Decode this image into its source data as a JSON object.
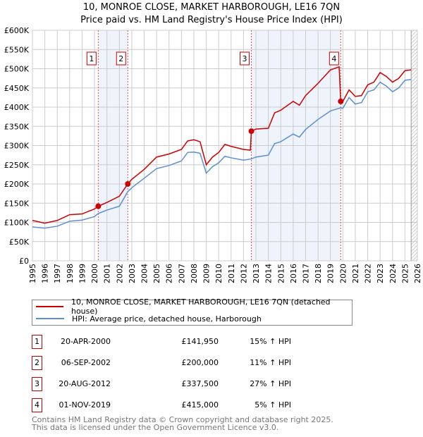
{
  "chart_data": {
    "type": "line",
    "title": "10, MONROE CLOSE, MARKET HARBOROUGH, LE16 7QN",
    "subtitle": "Price paid vs. HM Land Registry's House Price Index (HPI)",
    "xlim": [
      1995,
      2026
    ],
    "ylim": [
      0,
      600000
    ],
    "x_ticks": [
      "1995",
      "1996",
      "1997",
      "1998",
      "1999",
      "2000",
      "2001",
      "2002",
      "2003",
      "2004",
      "2005",
      "2006",
      "2007",
      "2008",
      "2009",
      "2010",
      "2011",
      "2012",
      "2013",
      "2014",
      "2015",
      "2016",
      "2017",
      "2018",
      "2019",
      "2020",
      "2021",
      "2022",
      "2023",
      "2024",
      "2025",
      "2026"
    ],
    "y_ticks": [
      "£0",
      "£50K",
      "£100K",
      "£150K",
      "£200K",
      "£250K",
      "£300K",
      "£350K",
      "£400K",
      "£450K",
      "£500K",
      "£550K",
      "£600K"
    ],
    "grid": true,
    "series": [
      {
        "name": "10, MONROE CLOSE, MARKET HARBOROUGH, LE16 7QN (detached house)",
        "color": "#cc0000",
        "x": [
          1995,
          1996,
          1997,
          1998,
          1999,
          2000,
          2000.3,
          2001,
          2002,
          2002.68,
          2003,
          2004,
          2005,
          2006,
          2007,
          2007.5,
          2008,
          2008.5,
          2009,
          2009.5,
          2010,
          2010.5,
          2011,
          2012,
          2012.55,
          2012.63,
          2013,
          2014,
          2014.5,
          2015,
          2016,
          2016.5,
          2017,
          2018,
          2019,
          2019.7,
          2019.83,
          2020,
          2020.5,
          2021,
          2021.5,
          2022,
          2022.5,
          2023,
          2023.5,
          2024,
          2024.5,
          2025,
          2025.5
        ],
        "y": [
          105000,
          98000,
          105000,
          120000,
          122000,
          135000,
          141950,
          152000,
          168000,
          200000,
          212000,
          238000,
          270000,
          278000,
          290000,
          312000,
          315000,
          310000,
          250000,
          270000,
          282000,
          303000,
          298000,
          290000,
          288000,
          337500,
          343000,
          345000,
          385000,
          392000,
          415000,
          405000,
          430000,
          462000,
          497000,
          505000,
          415000,
          415000,
          445000,
          428000,
          430000,
          458000,
          465000,
          490000,
          480000,
          465000,
          475000,
          495000,
          497000
        ]
      },
      {
        "name": "HPI: Average price, detached house, Harborough",
        "color": "#5b8fd4",
        "x": [
          1995,
          1996,
          1997,
          1998,
          1999,
          2000,
          2000.3,
          2001,
          2002,
          2002.68,
          2003,
          2004,
          2005,
          2006,
          2007,
          2007.5,
          2008,
          2008.5,
          2009,
          2009.5,
          2010,
          2010.5,
          2011,
          2012,
          2012.6,
          2013,
          2014,
          2014.5,
          2015,
          2016,
          2016.5,
          2017,
          2018,
          2019,
          2019.8,
          2020,
          2020.5,
          2021,
          2021.5,
          2022,
          2022.5,
          2023,
          2023.5,
          2024,
          2024.5,
          2025,
          2025.5
        ],
        "y": [
          88000,
          85000,
          90000,
          103000,
          106000,
          115000,
          123000,
          132000,
          142000,
          180000,
          190000,
          215000,
          240000,
          248000,
          260000,
          282000,
          283000,
          280000,
          228000,
          245000,
          255000,
          272000,
          268000,
          262000,
          265000,
          270000,
          275000,
          305000,
          310000,
          330000,
          322000,
          342000,
          368000,
          390000,
          398000,
          397000,
          425000,
          408000,
          412000,
          440000,
          445000,
          465000,
          455000,
          440000,
          450000,
          470000,
          472000
        ]
      }
    ],
    "sales": [
      {
        "label": "1",
        "x": 2000.3,
        "y": 141950,
        "date": "20-APR-2000",
        "price": "£141,950",
        "hpi": "15% ↑ HPI"
      },
      {
        "label": "2",
        "x": 2002.68,
        "y": 200000,
        "date": "06-SEP-2002",
        "price": "£200,000",
        "hpi": "11% ↑ HPI"
      },
      {
        "label": "3",
        "x": 2012.63,
        "y": 337500,
        "date": "20-AUG-2012",
        "price": "£337,500",
        "hpi": "27% ↑ HPI"
      },
      {
        "label": "4",
        "x": 2019.83,
        "y": 415000,
        "date": "01-NOV-2019",
        "price": "£415,000",
        "hpi": "5% ↑ HPI"
      }
    ],
    "shaded_ranges": [
      [
        2000.3,
        2002.68
      ],
      [
        2012.63,
        2019.83
      ]
    ],
    "hatched_from": 2025.5,
    "legend": "below"
  },
  "footer": {
    "line1": "Contains HM Land Registry data © Crown copyright and database right 2025.",
    "line2": "This data is licensed under the Open Government Licence v3.0."
  }
}
